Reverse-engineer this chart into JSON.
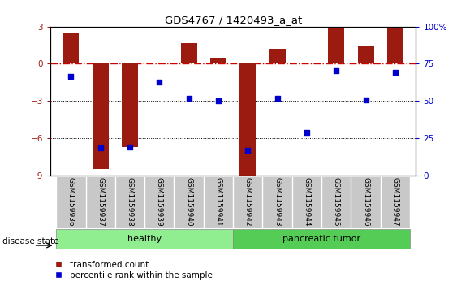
{
  "title": "GDS4767 / 1420493_a_at",
  "samples": [
    "GSM1159936",
    "GSM1159937",
    "GSM1159938",
    "GSM1159939",
    "GSM1159940",
    "GSM1159941",
    "GSM1159942",
    "GSM1159943",
    "GSM1159944",
    "GSM1159945",
    "GSM1159946",
    "GSM1159947"
  ],
  "red_bars": [
    2.5,
    -8.5,
    -6.7,
    0.0,
    1.7,
    0.5,
    -9.0,
    1.2,
    0.05,
    3.0,
    1.5,
    3.0
  ],
  "blue_dots": [
    -1.0,
    -6.8,
    -6.7,
    -1.5,
    -2.8,
    -3.0,
    -7.0,
    -2.8,
    -5.5,
    -0.55,
    -2.9,
    -0.7
  ],
  "ylim_left": [
    -9,
    3
  ],
  "ylim_right": [
    0,
    100
  ],
  "yticks_left": [
    -9,
    -6,
    -3,
    0,
    3
  ],
  "yticks_right": [
    0,
    25,
    50,
    75,
    100
  ],
  "bar_color": "#9B1B10",
  "dot_color": "#0000CC",
  "zero_line_color": "#CC0000",
  "grid_color": "#000000",
  "healthy_group": [
    0,
    1,
    2,
    3,
    4,
    5
  ],
  "tumor_group": [
    6,
    7,
    8,
    9,
    10,
    11
  ],
  "healthy_label": "healthy",
  "tumor_label": "pancreatic tumor",
  "group_color_healthy": "#90EE90",
  "group_color_tumor": "#55CC55",
  "disease_state_label": "disease state",
  "legend_red": "transformed count",
  "legend_blue": "percentile rank within the sample",
  "bg_color": "#FFFFFF",
  "spine_color": "#000000",
  "tick_label_area_color": "#C8C8C8"
}
